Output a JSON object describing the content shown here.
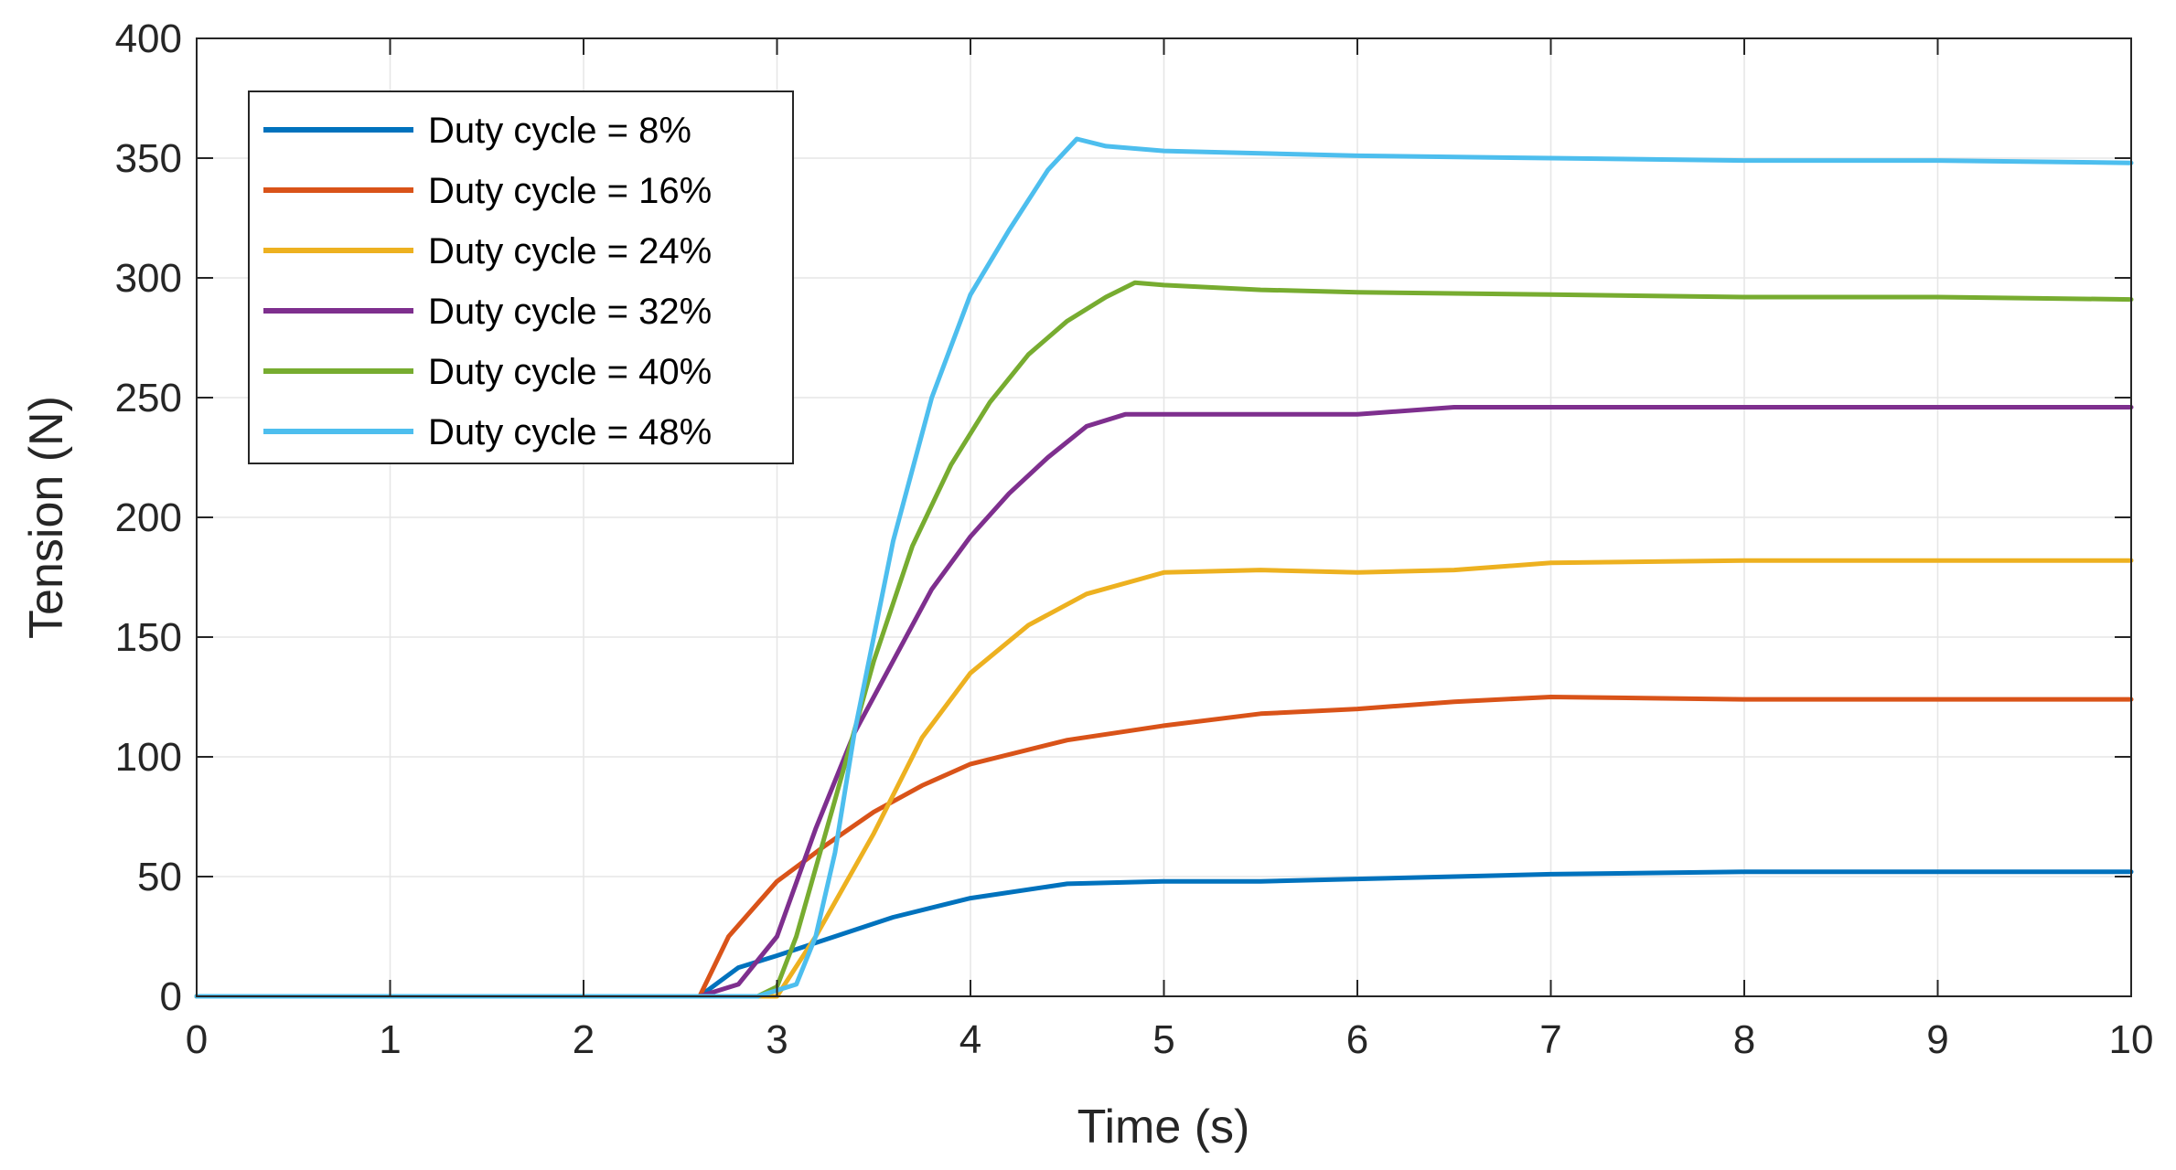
{
  "chart_data": {
    "type": "line",
    "title": "",
    "xlabel": "Time (s)",
    "ylabel": "Tension (N)",
    "xlim": [
      0,
      10
    ],
    "ylim": [
      0,
      400
    ],
    "xticks": [
      0,
      1,
      2,
      3,
      4,
      5,
      6,
      7,
      8,
      9,
      10
    ],
    "yticks": [
      0,
      50,
      100,
      150,
      200,
      250,
      300,
      350,
      400
    ],
    "xtick_labels": [
      "0",
      "1",
      "2",
      "3",
      "4",
      "5",
      "6",
      "7",
      "8",
      "9",
      "10"
    ],
    "ytick_labels": [
      "0",
      "50",
      "100",
      "150",
      "200",
      "250",
      "300",
      "350",
      "400"
    ],
    "grid": true,
    "legend_position": "top-left",
    "series": [
      {
        "name": "Duty cycle = 8%",
        "color": "#0072BD",
        "x": [
          0,
          2.6,
          2.8,
          3.0,
          3.3,
          3.6,
          4.0,
          4.5,
          5.0,
          5.5,
          6.0,
          7.0,
          8.0,
          9.0,
          10.0
        ],
        "values": [
          0,
          0,
          12,
          17,
          25,
          33,
          41,
          47,
          48,
          48,
          49,
          51,
          52,
          52,
          52
        ]
      },
      {
        "name": "Duty cycle = 16%",
        "color": "#D95319",
        "x": [
          0,
          2.6,
          2.75,
          3.0,
          3.25,
          3.5,
          3.75,
          4.0,
          4.5,
          5.0,
          5.5,
          6.0,
          6.5,
          7.0,
          8.0,
          9.0,
          10.0
        ],
        "values": [
          0,
          0,
          25,
          48,
          63,
          77,
          88,
          97,
          107,
          113,
          118,
          120,
          123,
          125,
          124,
          124,
          124
        ]
      },
      {
        "name": "Duty cycle = 24%",
        "color": "#EDB120",
        "x": [
          0,
          2.9,
          3.0,
          3.2,
          3.5,
          3.75,
          4.0,
          4.3,
          4.6,
          5.0,
          5.5,
          6.0,
          6.5,
          7.0,
          8.0,
          9.0,
          10.0
        ],
        "values": [
          0,
          0,
          0,
          25,
          68,
          108,
          135,
          155,
          168,
          177,
          178,
          177,
          178,
          181,
          182,
          182,
          182
        ]
      },
      {
        "name": "Duty cycle = 32%",
        "color": "#7E2F8E",
        "x": [
          0,
          2.6,
          2.8,
          3.0,
          3.2,
          3.4,
          3.6,
          3.8,
          4.0,
          4.2,
          4.4,
          4.6,
          4.8,
          5.0,
          5.5,
          6.0,
          6.5,
          7.0,
          8.0,
          9.0,
          10.0
        ],
        "values": [
          0,
          0,
          5,
          25,
          70,
          110,
          140,
          170,
          192,
          210,
          225,
          238,
          243,
          243,
          243,
          243,
          246,
          246,
          246,
          246,
          246
        ]
      },
      {
        "name": "Duty cycle = 40%",
        "color": "#77AC30",
        "x": [
          0,
          2.9,
          3.0,
          3.1,
          3.3,
          3.5,
          3.7,
          3.9,
          4.1,
          4.3,
          4.5,
          4.7,
          4.85,
          5.0,
          5.5,
          6.0,
          7.0,
          8.0,
          9.0,
          10.0
        ],
        "values": [
          0,
          0,
          4,
          25,
          82,
          140,
          188,
          222,
          248,
          268,
          282,
          292,
          298,
          297,
          295,
          294,
          293,
          292,
          292,
          291
        ]
      },
      {
        "name": "Duty cycle = 48%",
        "color": "#4DBEEE",
        "x": [
          0,
          2.9,
          3.1,
          3.2,
          3.3,
          3.4,
          3.6,
          3.8,
          4.0,
          4.2,
          4.4,
          4.55,
          4.7,
          5.0,
          5.5,
          6.0,
          7.0,
          8.0,
          9.0,
          10.0
        ],
        "values": [
          0,
          0,
          5,
          25,
          60,
          110,
          190,
          250,
          293,
          320,
          345,
          358,
          355,
          353,
          352,
          351,
          350,
          349,
          349,
          348
        ]
      }
    ]
  }
}
